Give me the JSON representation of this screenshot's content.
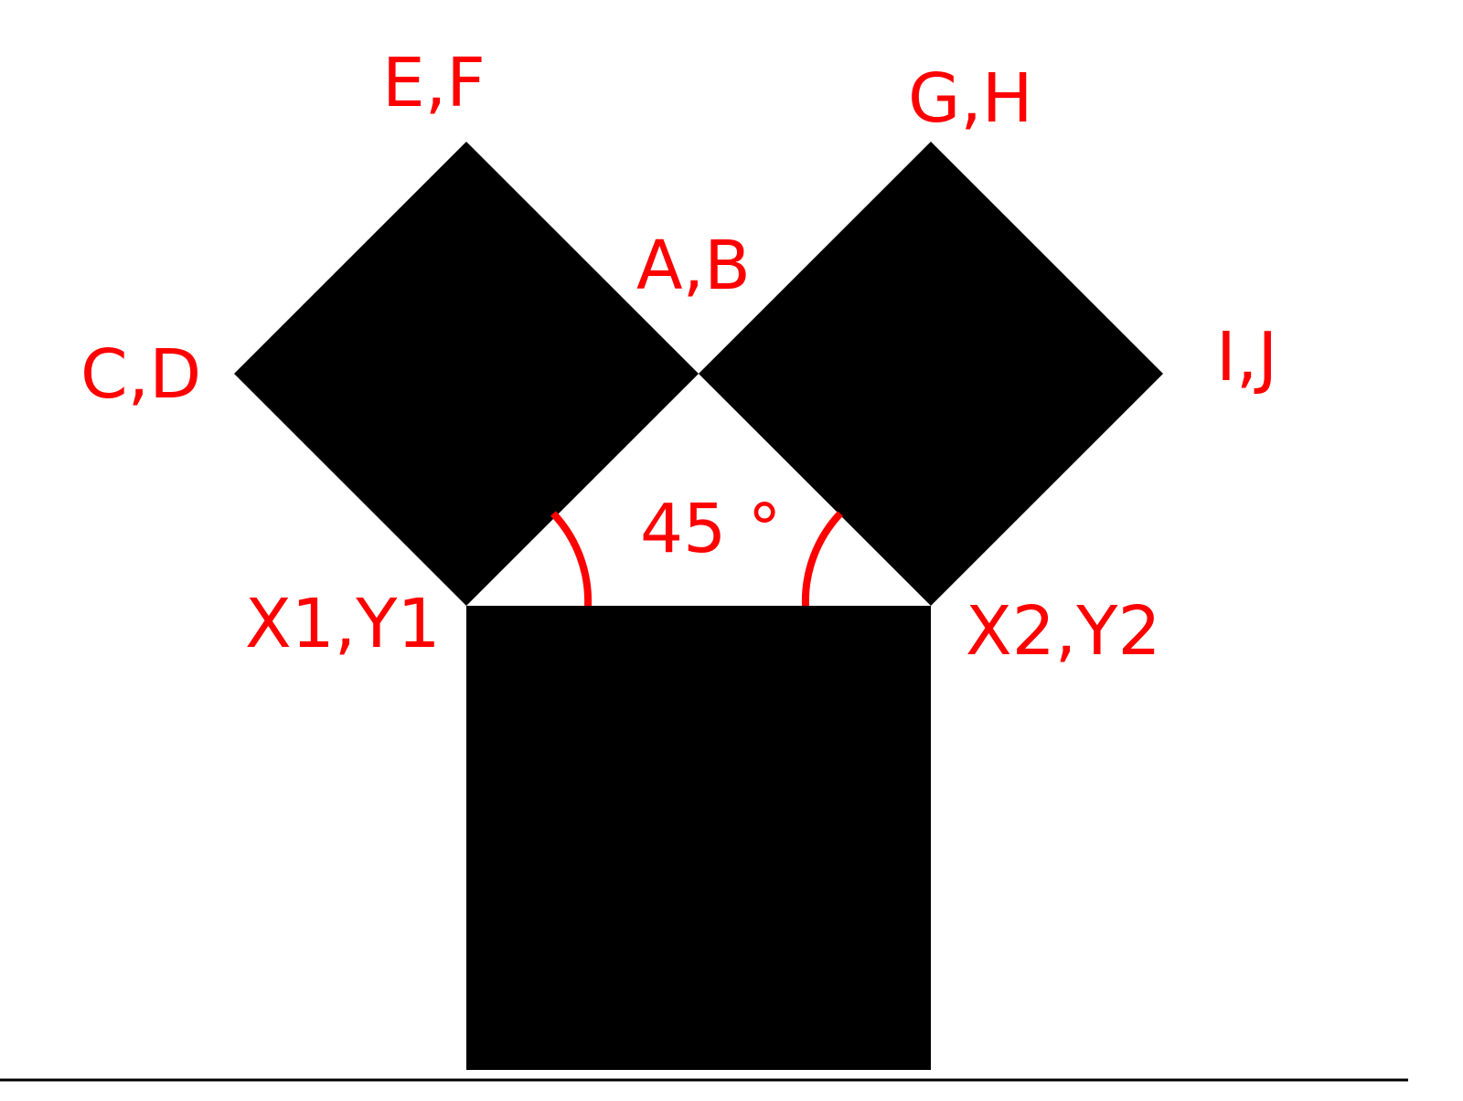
{
  "colors": {
    "shape": "#000000",
    "label": "#ff0000",
    "background": "#ffffff"
  },
  "labels": {
    "ef": "E,F",
    "gh": "G,H",
    "ab": "A,B",
    "cd": "C,D",
    "ij": "I,J",
    "x1y1": "X1,Y1",
    "x2y2": "X2,Y2",
    "angle": "45 °"
  }
}
